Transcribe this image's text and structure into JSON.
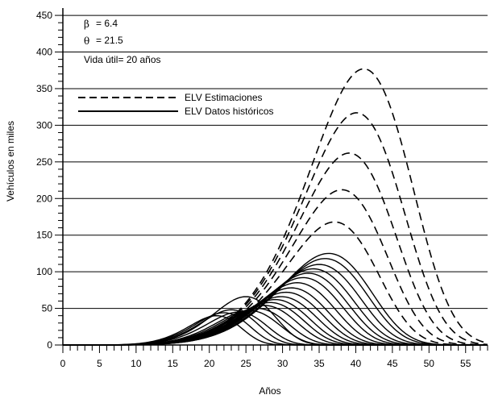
{
  "chart_data": {
    "type": "line",
    "xlabel": "Años",
    "ylabel": "Vehículos en miles",
    "xlim": [
      0,
      58
    ],
    "ylim": [
      0,
      460
    ],
    "x_ticks": [
      0,
      5,
      10,
      15,
      20,
      25,
      30,
      35,
      40,
      45,
      50,
      55
    ],
    "x_tick_labels": [
      "0",
      "5",
      "10",
      "15",
      "20",
      "25",
      "30",
      "35",
      "40",
      "45",
      "50",
      "55"
    ],
    "y_ticks": [
      0,
      50,
      100,
      150,
      200,
      250,
      300,
      350,
      400,
      450
    ],
    "y_tick_labels": [
      "0",
      "50",
      "100",
      "150",
      "200",
      "250",
      "300",
      "350",
      "400",
      "450"
    ],
    "grid": "horizontal",
    "legend_position": "top-left",
    "legend": [
      {
        "label": "ELV Estimaciones",
        "style": "dashed"
      },
      {
        "label": "ELV Datos históricos",
        "style": "solid"
      }
    ],
    "annotations": [
      {
        "symbol": "β",
        "text": "=  6.4"
      },
      {
        "symbol": "θ",
        "text": "=  21.5"
      },
      {
        "symbol": "",
        "text": "Vida útil= 20 años"
      }
    ],
    "series": [
      {
        "style": "solid",
        "peak_x": 21.0,
        "peak_y": 40
      },
      {
        "style": "solid",
        "peak_x": 22.0,
        "peak_y": 44
      },
      {
        "style": "solid",
        "peak_x": 23.0,
        "peak_y": 48
      },
      {
        "style": "solid",
        "peak_x": 25.0,
        "peak_y": 66
      },
      {
        "style": "solid",
        "peak_x": 24.0,
        "peak_y": 45
      },
      {
        "style": "solid",
        "peak_x": 25.5,
        "peak_y": 47
      },
      {
        "style": "solid",
        "peak_x": 26.5,
        "peak_y": 50
      },
      {
        "style": "solid",
        "peak_x": 27.5,
        "peak_y": 54
      },
      {
        "style": "solid",
        "peak_x": 28.3,
        "peak_y": 58
      },
      {
        "style": "solid",
        "peak_x": 29.0,
        "peak_y": 62
      },
      {
        "style": "solid",
        "peak_x": 29.8,
        "peak_y": 66
      },
      {
        "style": "solid",
        "peak_x": 30.5,
        "peak_y": 72
      },
      {
        "style": "solid",
        "peak_x": 31.2,
        "peak_y": 78
      },
      {
        "style": "solid",
        "peak_x": 32.0,
        "peak_y": 85
      },
      {
        "style": "solid",
        "peak_x": 32.8,
        "peak_y": 92
      },
      {
        "style": "solid",
        "peak_x": 33.5,
        "peak_y": 98
      },
      {
        "style": "solid",
        "peak_x": 34.2,
        "peak_y": 104
      },
      {
        "style": "solid",
        "peak_x": 35.0,
        "peak_y": 110
      },
      {
        "style": "solid",
        "peak_x": 35.8,
        "peak_y": 118
      },
      {
        "style": "solid",
        "peak_x": 36.3,
        "peak_y": 125
      },
      {
        "style": "dashed",
        "peak_x": 37.1,
        "peak_y": 168
      },
      {
        "style": "dashed",
        "peak_x": 38.1,
        "peak_y": 212
      },
      {
        "style": "dashed",
        "peak_x": 39.1,
        "peak_y": 262
      },
      {
        "style": "dashed",
        "peak_x": 40.1,
        "peak_y": 317
      },
      {
        "style": "dashed",
        "peak_x": 41.1,
        "peak_y": 377
      }
    ]
  }
}
